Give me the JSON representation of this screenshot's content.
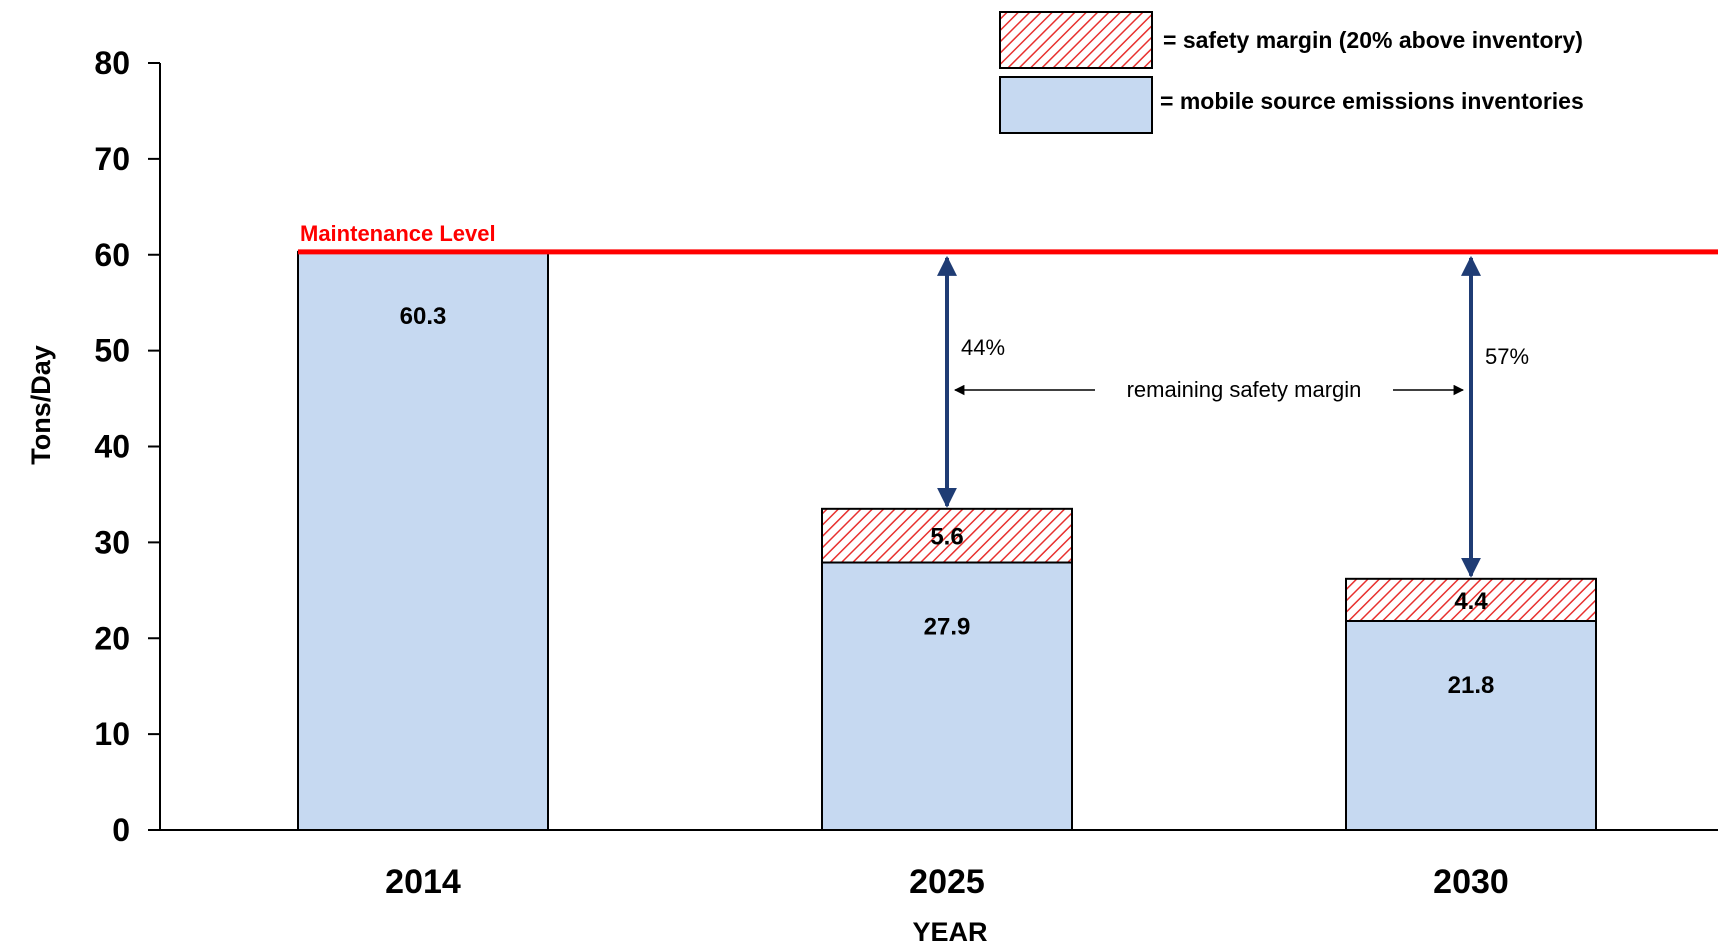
{
  "chart_data": {
    "type": "bar",
    "stacked": true,
    "title": "",
    "xlabel": "YEAR",
    "ylabel": "Tons/Day",
    "ylim": [
      0,
      80
    ],
    "yticks": [
      0,
      10,
      20,
      30,
      40,
      50,
      60,
      70,
      80
    ],
    "categories": [
      "2014",
      "2025",
      "2030"
    ],
    "grid": false,
    "series": [
      {
        "name": "= mobile source emissions inventories",
        "values": [
          60.3,
          27.9,
          21.8
        ],
        "labels": [
          "60.3",
          "27.9",
          "21.8"
        ],
        "color": "#c6d9f1",
        "pattern": "solid"
      },
      {
        "name": "= safety margin (20% above inventory)",
        "values": [
          0,
          5.6,
          4.4
        ],
        "labels": [
          "",
          "5.6",
          "4.4"
        ],
        "color": "#e8312f",
        "pattern": "hatch"
      }
    ],
    "legend_position": "top-right",
    "reference_line": {
      "label": "Maintenance Level",
      "value": 60.3,
      "color": "#ff0000"
    },
    "annotations": {
      "pct_2025": "44%",
      "pct_2030": "57%",
      "remaining_label": "remaining safety margin"
    },
    "arrow_color": "#1f3c74"
  }
}
